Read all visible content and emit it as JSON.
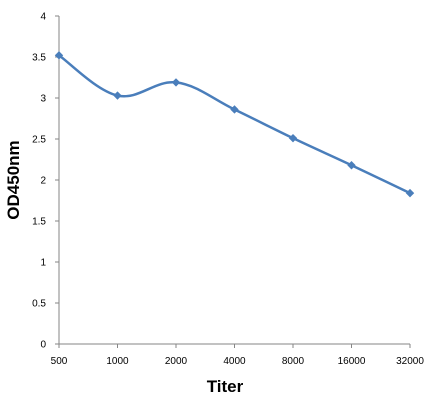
{
  "chart_data": {
    "type": "line",
    "title": "",
    "xlabel": "Titer",
    "ylabel": "OD450nm",
    "categories": [
      "500",
      "1000",
      "2000",
      "4000",
      "8000",
      "16000",
      "32000"
    ],
    "series": [
      {
        "values": [
          3.52,
          3.03,
          3.19,
          2.86,
          2.51,
          2.18,
          1.84
        ]
      }
    ],
    "ylim": [
      0,
      4
    ],
    "yticks": [
      "0",
      "0.5",
      "1",
      "1.5",
      "2",
      "2.5",
      "3",
      "3.5",
      "4"
    ],
    "grid": false,
    "legend": "none",
    "line_color": "#4a7ebb",
    "marker": "diamond",
    "smooth": true
  }
}
